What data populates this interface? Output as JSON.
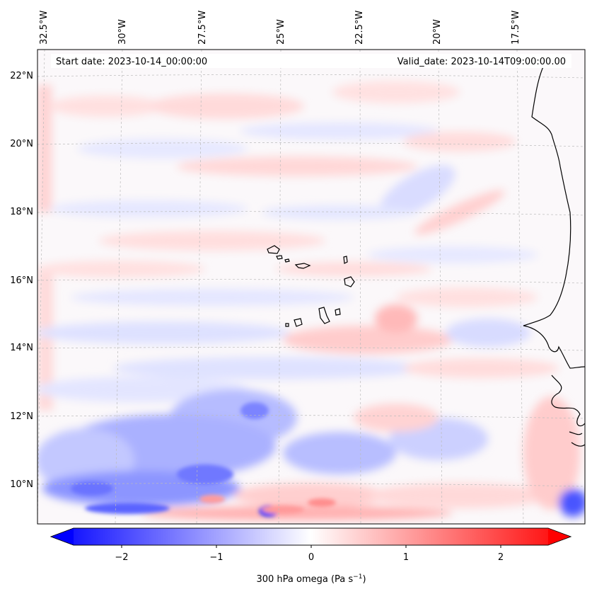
{
  "map": {
    "start_date_text": "Start date: 2023-10-14_00:00:00",
    "valid_date_text": "Valid_date: 2023-10-14T09:00:00.00",
    "lon_labels": [
      "32.5°W",
      "30°W",
      "27.5°W",
      "25°W",
      "22.5°W",
      "20°W",
      "17.5°W"
    ],
    "lat_labels": [
      "22°N",
      "20°N",
      "18°N",
      "16°N",
      "14°N",
      "12°N",
      "10°N"
    ],
    "coastline_color": "#000000",
    "gridline_color": "#bbbbbb"
  },
  "colorbar": {
    "ticks": [
      "−2",
      "−1",
      "0",
      "1",
      "2"
    ],
    "label_main": "300 hPa omega (Pa s",
    "label_sup": "−1",
    "label_end": ")",
    "vmin": -2.7,
    "vmax": 2.7,
    "colormap": "bwr",
    "color_min": "#0000ff",
    "color_mid": "#ffffff",
    "color_max": "#ff0000"
  }
}
